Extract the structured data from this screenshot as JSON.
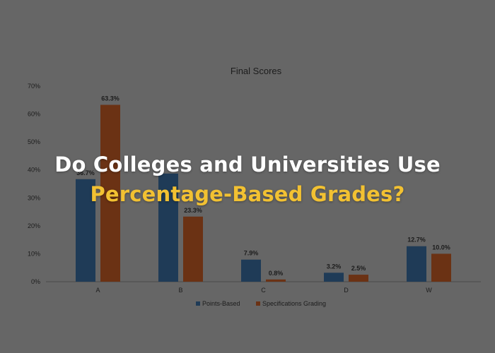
{
  "overlay": {
    "line1": "Do Colleges and Universities Use",
    "line2": "Percentage-Based Grades?",
    "line1_color": "#ffffff",
    "line2_color": "#f2c132"
  },
  "chart_data": {
    "type": "bar",
    "title": "Final Scores",
    "categories": [
      "A",
      "B",
      "C",
      "D",
      "W"
    ],
    "series": [
      {
        "name": "Points-Based",
        "values": [
          36.7,
          38.7,
          7.9,
          3.2,
          12.7
        ],
        "labels": [
          "36.7%",
          "",
          "7.9%",
          "3.2%",
          "12.7%"
        ],
        "color": "#1f3b57"
      },
      {
        "name": "Specifications Grading",
        "values": [
          63.3,
          23.3,
          0.8,
          2.5,
          10.0
        ],
        "labels": [
          "63.3%",
          "23.3%",
          "0.8%",
          "2.5%",
          "10.0%"
        ],
        "color": "#6b3214"
      }
    ],
    "ylim": [
      0,
      70
    ],
    "yticks": [
      "0%",
      "10%",
      "20%",
      "30%",
      "40%",
      "50%",
      "60%",
      "70%"
    ],
    "xlabel": "",
    "ylabel": "",
    "grid": false,
    "legend": "bottom"
  }
}
